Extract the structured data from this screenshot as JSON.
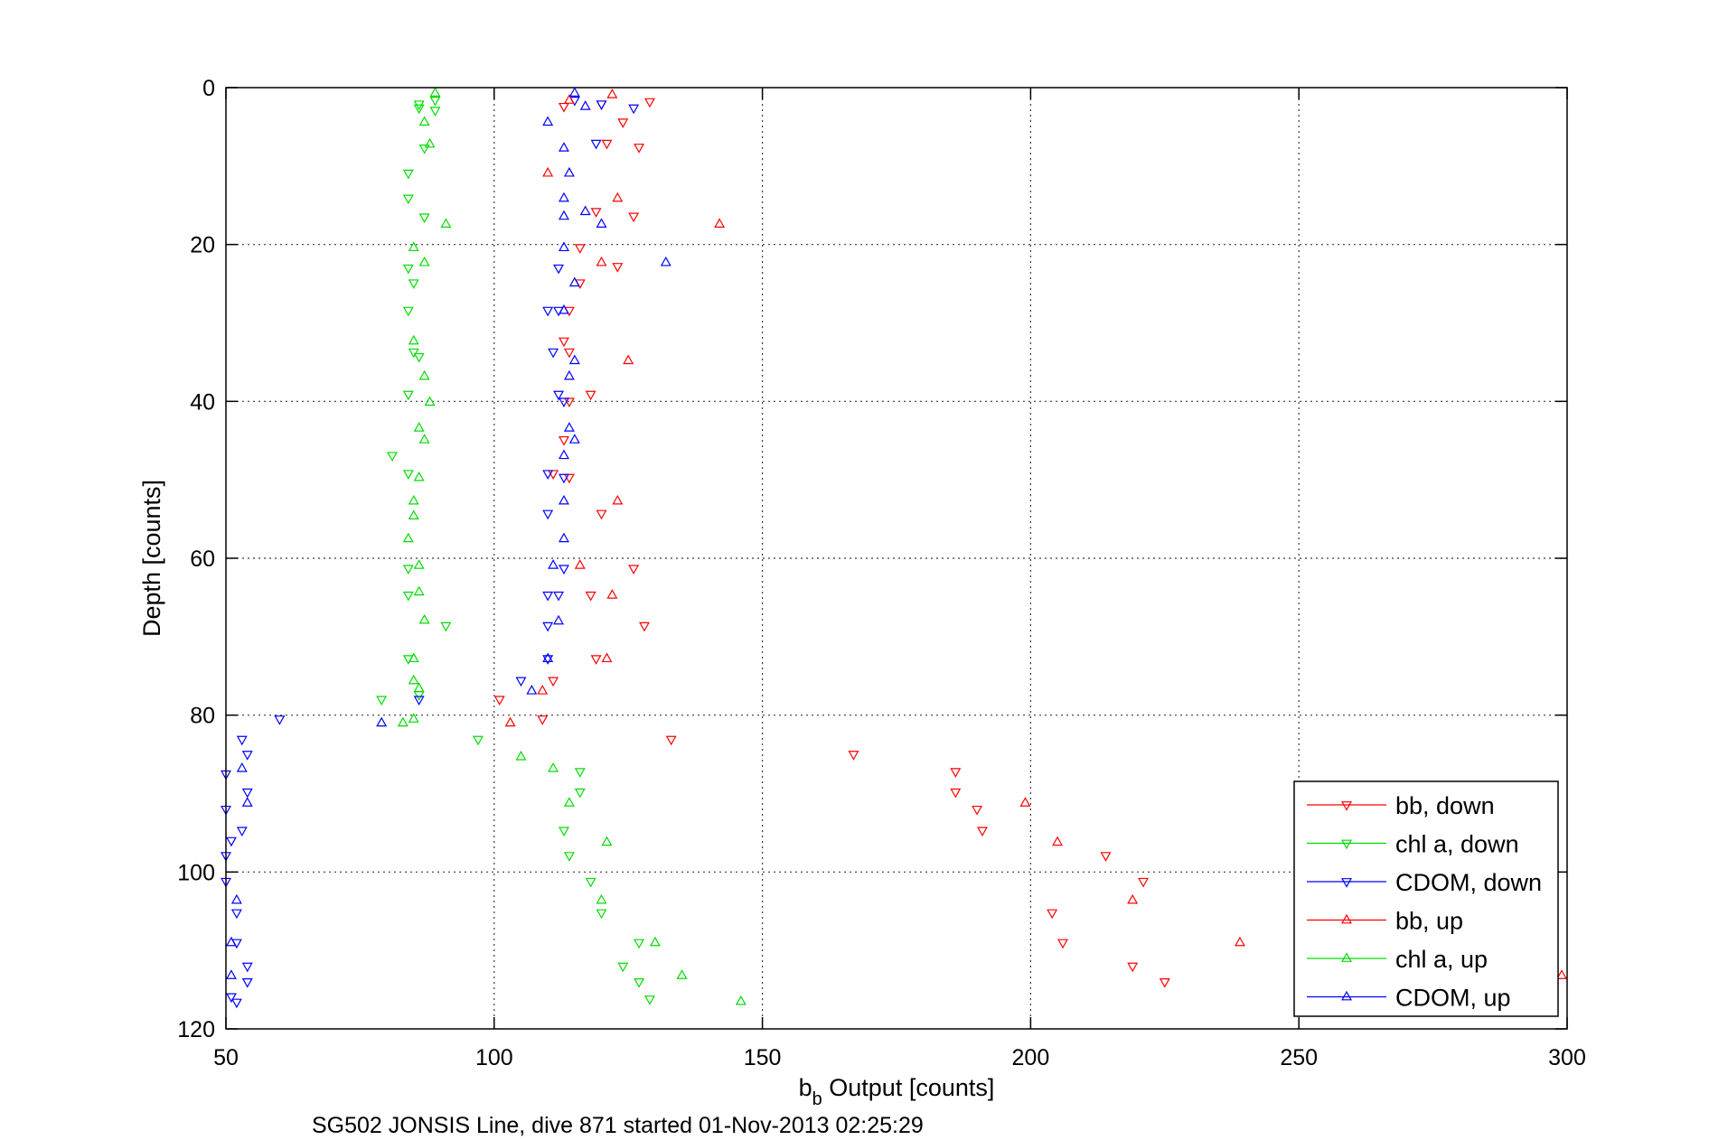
{
  "chart_data": {
    "type": "scatter",
    "xlabel": "b",
    "xlabel_sub": "b",
    "xlabel_rest": " Output [counts]",
    "ylabel": "Depth [counts]",
    "caption": "SG502 JONSIS Line, dive 871 started 01-Nov-2013 02:25:29",
    "xlim": [
      50,
      300
    ],
    "ylim": [
      120,
      0
    ],
    "y_reversed": true,
    "x_ticks": [
      50,
      100,
      150,
      200,
      250,
      300
    ],
    "y_ticks": [
      0,
      20,
      40,
      60,
      80,
      100,
      120
    ],
    "grid": true,
    "legend_position": "bottom-right",
    "series": [
      {
        "name": "bb, down",
        "color": "#ff0000",
        "marker": "triangle-down",
        "points": [
          [
            129,
            1.8
          ],
          [
            113,
            2.4
          ],
          [
            120,
            2.1
          ],
          [
            124,
            4.4
          ],
          [
            121,
            7.1
          ],
          [
            127,
            7.6
          ],
          [
            119,
            15.8
          ],
          [
            126,
            16.4
          ],
          [
            116,
            20.4
          ],
          [
            123,
            22.8
          ],
          [
            116,
            24.9
          ],
          [
            114,
            28.4
          ],
          [
            113,
            32.3
          ],
          [
            114,
            33.7
          ],
          [
            118,
            39.1
          ],
          [
            114,
            40.0
          ],
          [
            113,
            44.9
          ],
          [
            111,
            49.2
          ],
          [
            114,
            49.7
          ],
          [
            120,
            54.3
          ],
          [
            126,
            61.3
          ],
          [
            118,
            64.7
          ],
          [
            128,
            68.6
          ],
          [
            119,
            72.8
          ],
          [
            111,
            75.6
          ],
          [
            101,
            78.0
          ],
          [
            109,
            80.5
          ],
          [
            133,
            83.1
          ],
          [
            167,
            85.0
          ],
          [
            186,
            87.2
          ],
          [
            186,
            89.8
          ],
          [
            190,
            92.0
          ],
          [
            191,
            94.7
          ],
          [
            214,
            97.9
          ],
          [
            221,
            101.2
          ],
          [
            204,
            105.2
          ],
          [
            206,
            109.0
          ],
          [
            219,
            112.0
          ],
          [
            225,
            114.0
          ]
        ]
      },
      {
        "name": "chl a, down",
        "color": "#00dd00",
        "marker": "triangle-down",
        "points": [
          [
            89,
            1.6
          ],
          [
            86,
            2.1
          ],
          [
            89,
            2.9
          ],
          [
            86,
            2.6
          ],
          [
            87,
            7.7
          ],
          [
            84,
            10.9
          ],
          [
            84,
            14.1
          ],
          [
            87,
            16.5
          ],
          [
            84,
            23.0
          ],
          [
            85,
            24.9
          ],
          [
            84,
            28.4
          ],
          [
            85,
            33.7
          ],
          [
            86,
            34.3
          ],
          [
            84,
            39.1
          ],
          [
            81,
            46.9
          ],
          [
            84,
            49.2
          ],
          [
            84,
            61.3
          ],
          [
            84,
            64.7
          ],
          [
            91,
            68.6
          ],
          [
            84,
            72.8
          ],
          [
            79,
            78.0
          ],
          [
            86,
            77.4
          ],
          [
            97,
            83.1
          ],
          [
            116,
            87.2
          ],
          [
            116,
            89.8
          ],
          [
            113,
            94.7
          ],
          [
            114,
            97.9
          ],
          [
            118,
            101.2
          ],
          [
            120,
            105.2
          ],
          [
            127,
            109.0
          ],
          [
            124,
            112.0
          ],
          [
            127,
            114.0
          ],
          [
            129,
            116.2
          ]
        ]
      },
      {
        "name": "CDOM, down",
        "color": "#0000ff",
        "marker": "triangle-down",
        "points": [
          [
            115,
            1.6
          ],
          [
            120,
            2.1
          ],
          [
            126,
            2.6
          ],
          [
            119,
            7.1
          ],
          [
            112,
            23.0
          ],
          [
            110,
            28.4
          ],
          [
            112,
            28.4
          ],
          [
            111,
            33.7
          ],
          [
            112,
            39.1
          ],
          [
            113,
            40.0
          ],
          [
            110,
            49.2
          ],
          [
            113,
            49.7
          ],
          [
            110,
            54.3
          ],
          [
            113,
            61.3
          ],
          [
            110,
            64.7
          ],
          [
            112,
            64.7
          ],
          [
            110,
            68.6
          ],
          [
            110,
            72.8
          ],
          [
            105,
            75.6
          ],
          [
            86,
            78.0
          ],
          [
            60,
            80.5
          ],
          [
            53,
            83.1
          ],
          [
            54,
            85.0
          ],
          [
            50,
            87.5
          ],
          [
            54,
            89.8
          ],
          [
            50,
            92.0
          ],
          [
            53,
            94.7
          ],
          [
            51,
            96.0
          ],
          [
            50,
            97.9
          ],
          [
            50,
            101.2
          ],
          [
            52,
            105.2
          ],
          [
            52,
            109.0
          ],
          [
            54,
            112.0
          ],
          [
            54,
            114.0
          ],
          [
            51,
            115.9
          ],
          [
            52,
            116.6
          ]
        ]
      },
      {
        "name": "bb, up",
        "color": "#ff0000",
        "marker": "triangle-up",
        "points": [
          [
            122,
            0.9
          ],
          [
            114,
            1.6
          ],
          [
            110,
            10.9
          ],
          [
            123,
            14.1
          ],
          [
            142,
            17.4
          ],
          [
            120,
            22.3
          ],
          [
            125,
            34.8
          ],
          [
            123,
            52.7
          ],
          [
            116,
            60.9
          ],
          [
            122,
            64.7
          ],
          [
            121,
            72.8
          ],
          [
            109,
            76.9
          ],
          [
            103,
            81.0
          ],
          [
            199,
            91.2
          ],
          [
            205,
            96.2
          ],
          [
            219,
            103.6
          ],
          [
            239,
            109.0
          ],
          [
            299,
            113.2
          ]
        ]
      },
      {
        "name": "chl a, up",
        "color": "#00dd00",
        "marker": "triangle-up",
        "points": [
          [
            89,
            0.7
          ],
          [
            87,
            4.4
          ],
          [
            88,
            7.2
          ],
          [
            91,
            17.4
          ],
          [
            85,
            20.4
          ],
          [
            87,
            22.3
          ],
          [
            85,
            32.3
          ],
          [
            87,
            36.8
          ],
          [
            88,
            40.1
          ],
          [
            86,
            43.4
          ],
          [
            87,
            44.9
          ],
          [
            86,
            49.7
          ],
          [
            85,
            52.7
          ],
          [
            85,
            54.6
          ],
          [
            84,
            57.5
          ],
          [
            86,
            60.9
          ],
          [
            86,
            64.3
          ],
          [
            87,
            67.9
          ],
          [
            85,
            72.8
          ],
          [
            85,
            75.6
          ],
          [
            86,
            76.6
          ],
          [
            85,
            80.5
          ],
          [
            83,
            81.0
          ],
          [
            105,
            85.3
          ],
          [
            111,
            86.8
          ],
          [
            114,
            91.2
          ],
          [
            121,
            96.2
          ],
          [
            120,
            103.6
          ],
          [
            130,
            109.0
          ],
          [
            135,
            113.2
          ],
          [
            146,
            116.5
          ]
        ]
      },
      {
        "name": "CDOM, up",
        "color": "#0000ff",
        "marker": "triangle-up",
        "points": [
          [
            115,
            0.7
          ],
          [
            117,
            2.4
          ],
          [
            110,
            4.4
          ],
          [
            113,
            7.7
          ],
          [
            114,
            10.9
          ],
          [
            113,
            14.1
          ],
          [
            117,
            15.8
          ],
          [
            113,
            16.4
          ],
          [
            120,
            17.4
          ],
          [
            113,
            20.4
          ],
          [
            132,
            22.3
          ],
          [
            115,
            24.9
          ],
          [
            113,
            28.4
          ],
          [
            115,
            34.8
          ],
          [
            114,
            36.8
          ],
          [
            114,
            43.4
          ],
          [
            115,
            44.9
          ],
          [
            113,
            46.9
          ],
          [
            113,
            52.7
          ],
          [
            113,
            57.5
          ],
          [
            111,
            60.9
          ],
          [
            112,
            68.0
          ],
          [
            110,
            72.8
          ],
          [
            107,
            76.9
          ],
          [
            79,
            81.0
          ],
          [
            53,
            86.8
          ],
          [
            54,
            91.2
          ],
          [
            51,
            109.0
          ],
          [
            51,
            113.2
          ],
          [
            52,
            103.6
          ]
        ]
      }
    ]
  }
}
